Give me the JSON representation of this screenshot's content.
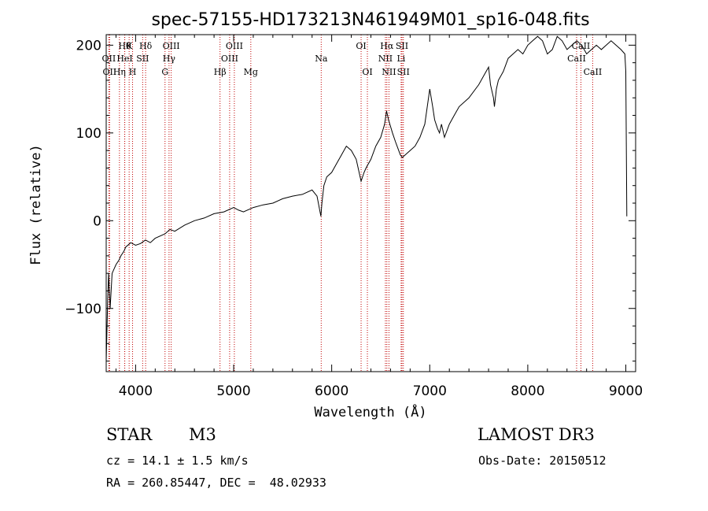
{
  "chart_data": {
    "type": "line",
    "title": "spec-57155-HD173213N461949M01_sp16-048.fits",
    "xlabel": "Wavelength (Å)",
    "ylabel": "Flux (relative)",
    "xlim": [
      3700,
      9100
    ],
    "ylim": [
      -172,
      212
    ],
    "x_ticks": [
      4000,
      5000,
      6000,
      7000,
      8000,
      9000
    ],
    "y_ticks": [
      -100,
      0,
      100,
      200
    ],
    "grid": false,
    "line_color": "#000000",
    "marker_color": "#c00000",
    "series": [
      {
        "x": [
          3700,
          3715,
          3725,
          3740,
          3760,
          3780,
          3800,
          3830,
          3850,
          3880,
          3900,
          3950,
          4000,
          4050,
          4100,
          4150,
          4200,
          4300,
          4350,
          4400,
          4500,
          4600,
          4700,
          4800,
          4900,
          5000,
          5050,
          5100,
          5200,
          5300,
          5400,
          5500,
          5600,
          5700,
          5800,
          5850,
          5890,
          5900,
          5920,
          5950,
          6000,
          6050,
          6100,
          6150,
          6200,
          6250,
          6300,
          6330,
          6350,
          6400,
          6450,
          6500,
          6540,
          6560,
          6580,
          6620,
          6650,
          6700,
          6720,
          6750,
          6800,
          6850,
          6900,
          6950,
          7000,
          7030,
          7050,
          7080,
          7100,
          7120,
          7150,
          7200,
          7250,
          7300,
          7400,
          7500,
          7550,
          7600,
          7620,
          7650,
          7660,
          7680,
          7700,
          7750,
          7800,
          7850,
          7900,
          7950,
          8000,
          8050,
          8100,
          8150,
          8200,
          8250,
          8300,
          8350,
          8400,
          8450,
          8500,
          8550,
          8600,
          8650,
          8700,
          8750,
          8800,
          8850,
          8900,
          8950,
          8990,
          9000,
          9010
        ],
        "y": [
          -160,
          -90,
          -60,
          -100,
          -60,
          -55,
          -50,
          -45,
          -40,
          -35,
          -30,
          -25,
          -28,
          -26,
          -22,
          -25,
          -20,
          -15,
          -10,
          -12,
          -5,
          0,
          3,
          8,
          10,
          15,
          12,
          10,
          15,
          18,
          20,
          25,
          28,
          30,
          35,
          28,
          5,
          20,
          40,
          50,
          55,
          65,
          75,
          85,
          80,
          70,
          45,
          55,
          60,
          70,
          85,
          95,
          110,
          125,
          115,
          100,
          90,
          75,
          72,
          75,
          80,
          85,
          95,
          110,
          150,
          130,
          115,
          105,
          100,
          110,
          95,
          110,
          120,
          130,
          140,
          155,
          165,
          175,
          155,
          140,
          130,
          150,
          160,
          170,
          185,
          190,
          195,
          190,
          200,
          205,
          210,
          205,
          190,
          195,
          210,
          205,
          195,
          200,
          205,
          200,
          190,
          195,
          200,
          195,
          200,
          205,
          200,
          195,
          190,
          170,
          5
        ]
      }
    ],
    "line_markers": [
      {
        "wl": 3727,
        "label": "OII",
        "row": 2
      },
      {
        "wl": 3735,
        "label": "OII",
        "row": 3
      },
      {
        "wl": 3835,
        "label": "Hη",
        "row": 3
      },
      {
        "wl": 3889,
        "label": "Hθ",
        "row": 1
      },
      {
        "wl": 3889,
        "label": "HeI",
        "row": 2
      },
      {
        "wl": 3934,
        "label": "K",
        "row": 1
      },
      {
        "wl": 3969,
        "label": "H",
        "row": 3
      },
      {
        "wl": 4072,
        "label": "SII",
        "row": 2
      },
      {
        "wl": 4102,
        "label": "Hδ",
        "row": 1
      },
      {
        "wl": 4300,
        "label": "G",
        "row": 3
      },
      {
        "wl": 4341,
        "label": "Hγ",
        "row": 2
      },
      {
        "wl": 4363,
        "label": "OIII",
        "row": 1
      },
      {
        "wl": 4861,
        "label": "Hβ",
        "row": 3
      },
      {
        "wl": 4959,
        "label": "OIII",
        "row": 2
      },
      {
        "wl": 5007,
        "label": "OIII",
        "row": 1
      },
      {
        "wl": 5175,
        "label": "Mg",
        "row": 3
      },
      {
        "wl": 5893,
        "label": "Na",
        "row": 2
      },
      {
        "wl": 6300,
        "label": "OI",
        "row": 1
      },
      {
        "wl": 6364,
        "label": "OI",
        "row": 3
      },
      {
        "wl": 6548,
        "label": "NII",
        "row": 2
      },
      {
        "wl": 6563,
        "label": "Hα",
        "row": 1
      },
      {
        "wl": 6584,
        "label": "NII",
        "row": 3
      },
      {
        "wl": 6708,
        "label": "Li",
        "row": 2
      },
      {
        "wl": 6717,
        "label": "SII",
        "row": 1
      },
      {
        "wl": 6731,
        "label": "SII",
        "row": 3
      },
      {
        "wl": 8498,
        "label": "CaII",
        "row": 2
      },
      {
        "wl": 8542,
        "label": "CaII",
        "row": 1
      },
      {
        "wl": 8662,
        "label": "CaII",
        "row": 3
      }
    ]
  },
  "info": {
    "object_class": "STAR",
    "subclass": "M3",
    "survey": "LAMOST DR3",
    "redshift_line": "cz = 14.1 ± 1.5 km/s",
    "obs_date_line": "Obs-Date: 20150512",
    "coords_line": "RA = 260.85447, DEC =  48.02933"
  }
}
